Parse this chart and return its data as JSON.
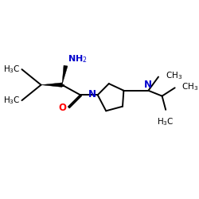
{
  "bg_color": "#ffffff",
  "bond_color": "#000000",
  "N_color": "#0000cd",
  "O_color": "#ff0000",
  "line_width": 1.4,
  "font_size": 7.5,
  "figsize": [
    2.5,
    2.5
  ],
  "dpi": 100,
  "xlim": [
    0,
    10
  ],
  "ylim": [
    0,
    10
  ]
}
